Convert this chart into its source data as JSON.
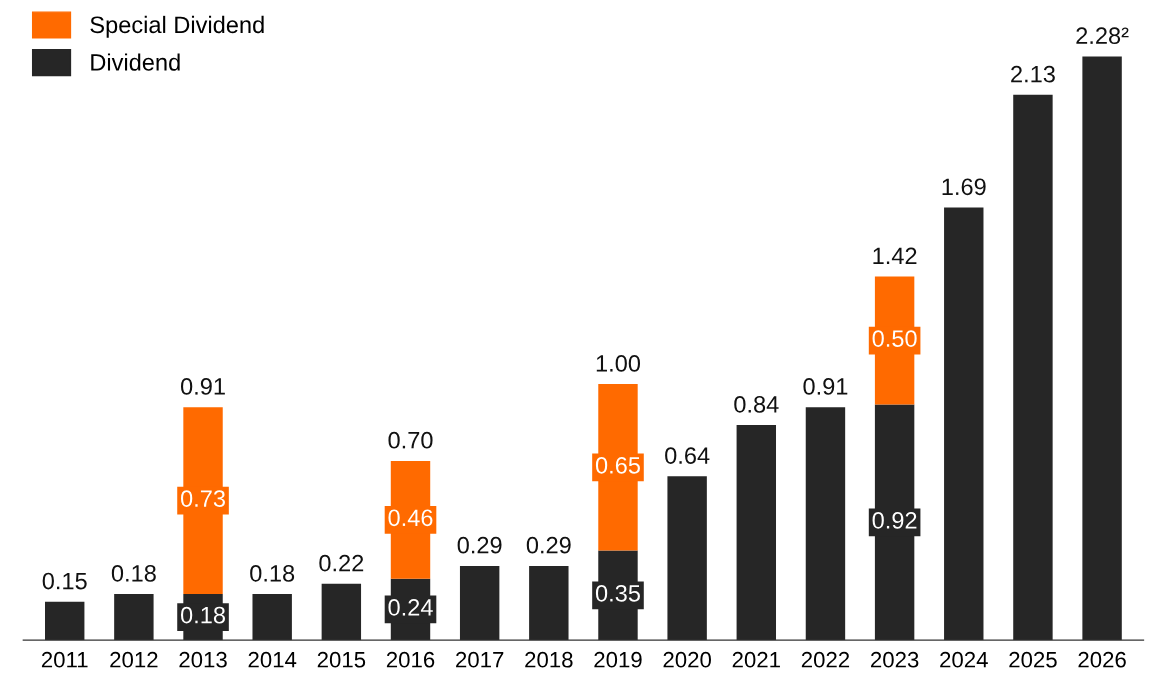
{
  "chart_data": {
    "type": "bar",
    "stacked": true,
    "legend": "top left",
    "tick_labels": "x",
    "grid": false,
    "categories": [
      "2011",
      "2012",
      "2013",
      "2014",
      "2015",
      "2016",
      "2017",
      "2018",
      "2019",
      "2020",
      "2021",
      "2022",
      "2023",
      "2024",
      "2025",
      "2026"
    ],
    "series": [
      {
        "name": "Dividend",
        "color": "#262626",
        "values": [
          0.15,
          0.18,
          0.18,
          0.18,
          0.22,
          0.24,
          0.29,
          0.29,
          0.35,
          0.64,
          0.84,
          0.91,
          0.92,
          1.69,
          2.13,
          2.28
        ],
        "value_labels": [
          null,
          null,
          "0.18",
          null,
          null,
          "0.24",
          null,
          null,
          "0.35",
          null,
          null,
          null,
          "0.92",
          null,
          null,
          null
        ]
      },
      {
        "name": "Special Dividend",
        "color": "#ff6a00",
        "values": [
          null,
          null,
          0.73,
          null,
          null,
          0.46,
          null,
          null,
          0.65,
          null,
          null,
          null,
          0.5,
          null,
          null,
          null
        ],
        "value_labels": [
          null,
          null,
          "0.73",
          null,
          null,
          "0.46",
          null,
          null,
          "0.65",
          null,
          null,
          null,
          "0.50",
          null,
          null,
          null
        ]
      }
    ],
    "totals": [
      "0.15",
      "0.18",
      "0.91",
      "0.18",
      "0.22",
      "0.70",
      "0.29",
      "0.29",
      "1.00",
      "0.64",
      "0.84",
      "0.91",
      "1.42",
      "1.69",
      "2.13",
      "2.28²"
    ]
  }
}
